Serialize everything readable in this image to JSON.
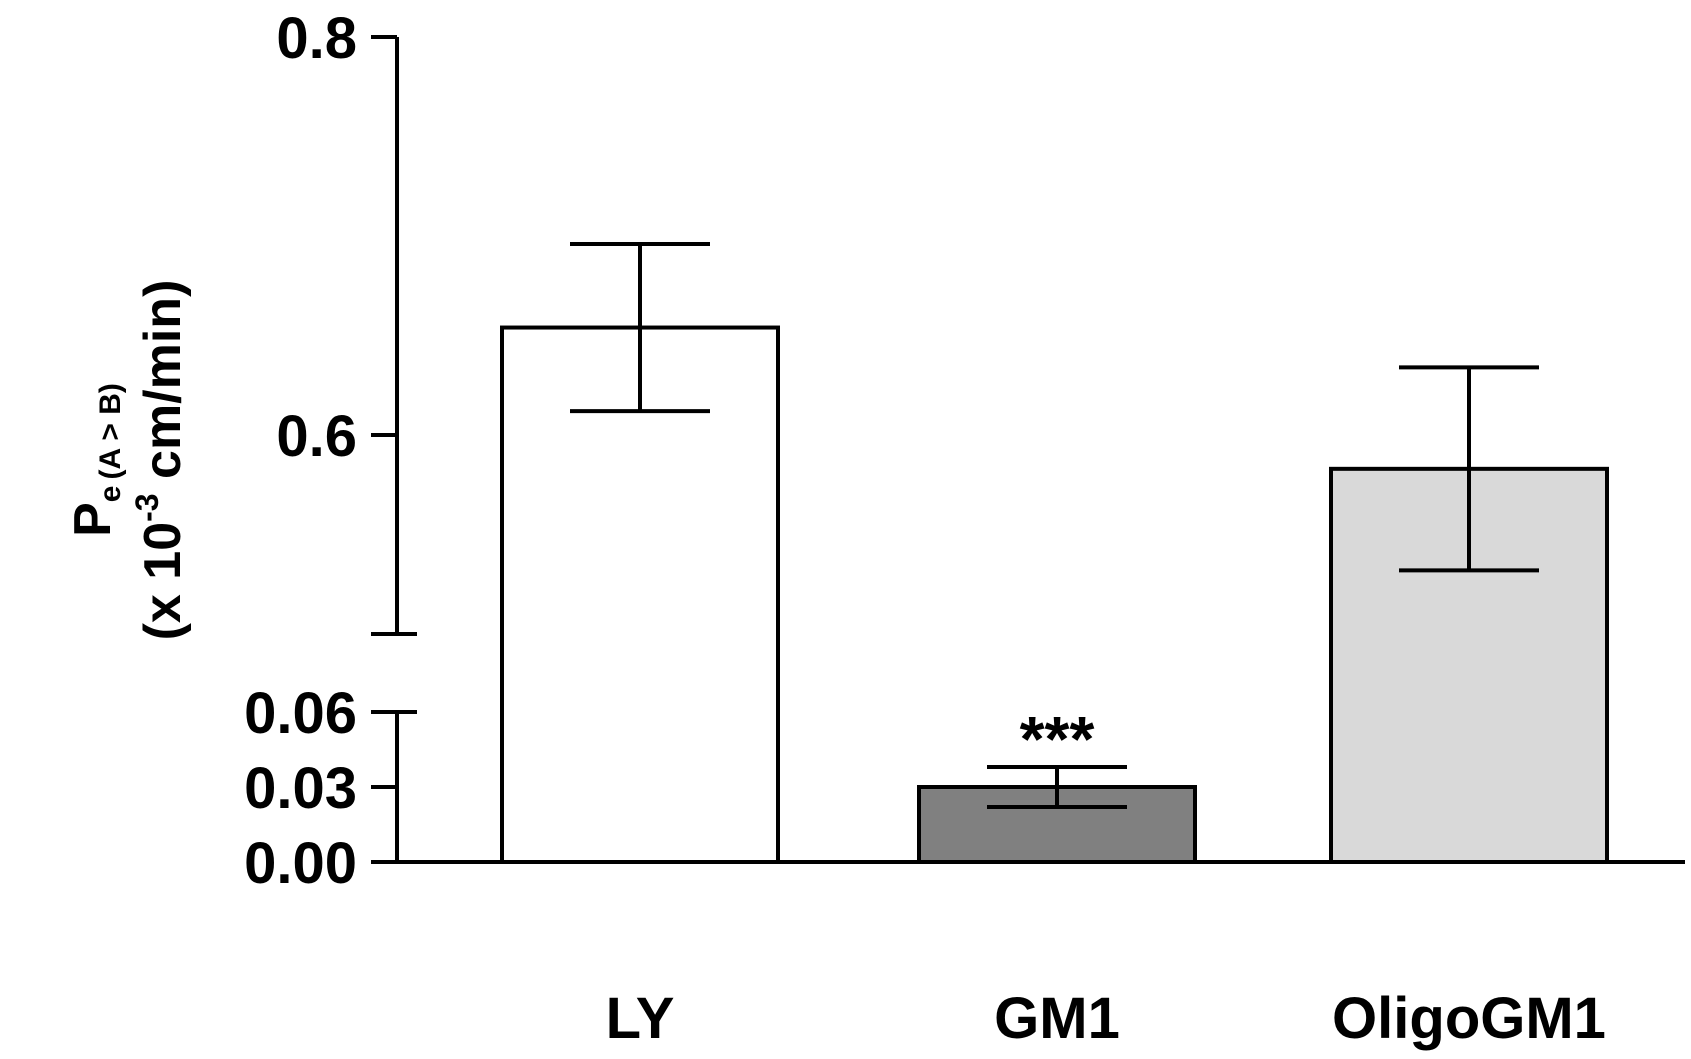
{
  "chart_data": {
    "type": "bar",
    "categories": [
      "LY",
      "GM1",
      "OligoGM1"
    ],
    "values": [
      0.654,
      0.03,
      0.583
    ],
    "error": [
      0.042,
      0.008,
      0.051
    ],
    "colors": [
      "#ffffff",
      "#808080",
      "#d9d9d9"
    ],
    "annotations": [
      {
        "category": "GM1",
        "text": "***"
      }
    ],
    "ylabel": {
      "main": "P",
      "sub": "e",
      "sub2": "(A > B)",
      "line2_prefix": "(x 10",
      "line2_sup": "-3",
      "line2_suffix": " cm/min)"
    },
    "xlabel": "",
    "axis_break": true,
    "lower_segment": {
      "ylim": [
        0,
        0.06
      ],
      "ticks": [
        "0.00",
        "0.03",
        "0.06"
      ]
    },
    "upper_segment": {
      "ylim": [
        0.5,
        0.8
      ],
      "ticks": [
        "0.6",
        "0.8"
      ]
    },
    "grid": false,
    "legend": "none"
  }
}
